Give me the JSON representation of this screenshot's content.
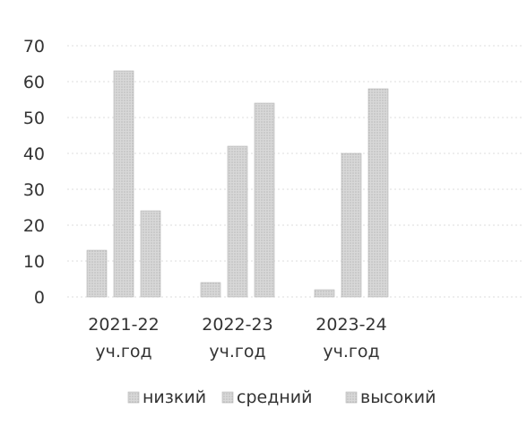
{
  "chart_data": {
    "type": "bar",
    "categories": [
      [
        "2021-22",
        "уч.год"
      ],
      [
        "2022-23",
        "уч.год"
      ],
      [
        "2023-24",
        "уч.год"
      ]
    ],
    "series": [
      {
        "name": "низкий",
        "values": [
          13,
          4,
          2
        ],
        "color": "#bdbdbd"
      },
      {
        "name": "средний",
        "values": [
          63,
          42,
          40
        ],
        "color": "#c4c4c4"
      },
      {
        "name": "высокий",
        "values": [
          24,
          54,
          58
        ],
        "color": "#cccccc"
      }
    ],
    "yticks": [
      "0",
      "10",
      "20",
      "30",
      "40",
      "50",
      "60",
      "70"
    ],
    "ylim": [
      0,
      70
    ],
    "grid": true,
    "legend_position": "bottom"
  }
}
